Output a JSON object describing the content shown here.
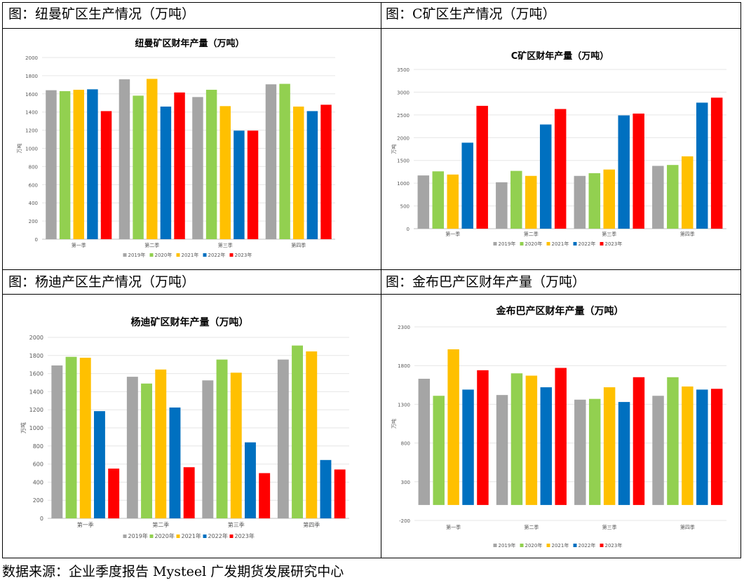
{
  "captions": [
    "图：纽曼矿区生产情况（万吨）",
    "图：C矿区生产情况（万吨）",
    "图：杨迪产区生产情况（万吨）",
    "图：金布巴产区财年产量（万吨）"
  ],
  "source": "数据来源：企业季度报告 Mysteel 广发期货发展研究中心",
  "colors": {
    "2019年": "#a5a5a5",
    "2020年": "#92d050",
    "2021年": "#ffc000",
    "2022年": "#0070c0",
    "2023年": "#ff0000"
  },
  "chart_data": [
    {
      "type": "bar",
      "title": "纽曼矿区财年产量（万吨）",
      "ylabel": "万吨",
      "categories": [
        "第一季",
        "第二季",
        "第三季",
        "第四季"
      ],
      "ylim": [
        0,
        2000
      ],
      "ticks": [
        0,
        200,
        400,
        600,
        800,
        1000,
        1200,
        1400,
        1600,
        1800,
        2000
      ],
      "series": [
        {
          "name": "2019年",
          "values": [
            1640,
            1760,
            1565,
            1705
          ]
        },
        {
          "name": "2020年",
          "values": [
            1630,
            1580,
            1645,
            1710
          ]
        },
        {
          "name": "2021年",
          "values": [
            1645,
            1765,
            1465,
            1460
          ]
        },
        {
          "name": "2022年",
          "values": [
            1650,
            1460,
            1195,
            1410
          ]
        },
        {
          "name": "2023年",
          "values": [
            1410,
            1615,
            1195,
            1480
          ]
        }
      ]
    },
    {
      "type": "bar",
      "title": "C矿区财年产量（万吨）",
      "ylabel": "万吨",
      "categories": [
        "第一季",
        "第二季",
        "第三季",
        "第四季"
      ],
      "ylim": [
        0,
        3500
      ],
      "ticks": [
        0,
        500,
        1000,
        1500,
        2000,
        2500,
        3000,
        3500
      ],
      "series": [
        {
          "name": "2019年",
          "values": [
            1170,
            1020,
            1160,
            1380
          ]
        },
        {
          "name": "2020年",
          "values": [
            1260,
            1270,
            1220,
            1400
          ]
        },
        {
          "name": "2021年",
          "values": [
            1190,
            1160,
            1300,
            1590
          ]
        },
        {
          "name": "2022年",
          "values": [
            1890,
            2290,
            2490,
            2770
          ]
        },
        {
          "name": "2023年",
          "values": [
            2700,
            2630,
            2530,
            2880
          ]
        }
      ]
    },
    {
      "type": "bar",
      "title": "杨迪矿区财年产量（万吨）",
      "ylabel": "万吨",
      "categories": [
        "第一季",
        "第二季",
        "第三季",
        "第四季"
      ],
      "ylim": [
        0,
        2000
      ],
      "ticks": [
        0,
        200,
        400,
        600,
        800,
        1000,
        1200,
        1400,
        1600,
        1800,
        2000
      ],
      "series": [
        {
          "name": "2019年",
          "values": [
            1690,
            1565,
            1525,
            1755
          ]
        },
        {
          "name": "2020年",
          "values": [
            1785,
            1490,
            1755,
            1910
          ]
        },
        {
          "name": "2021年",
          "values": [
            1775,
            1645,
            1610,
            1845
          ]
        },
        {
          "name": "2022年",
          "values": [
            1185,
            1225,
            840,
            645
          ]
        },
        {
          "name": "2023年",
          "values": [
            550,
            565,
            500,
            540
          ]
        }
      ]
    },
    {
      "type": "bar",
      "title": "金布巴产区财年产量（万吨）",
      "ylabel": "万吨",
      "categories": [
        "第一季",
        "第二季",
        "第三季",
        "第四季"
      ],
      "ylim": [
        -200,
        2300
      ],
      "ticks": [
        -200,
        300,
        800,
        1300,
        1800,
        2300
      ],
      "series": [
        {
          "name": "2019年",
          "values": [
            1630,
            1420,
            1360,
            1410
          ]
        },
        {
          "name": "2020年",
          "values": [
            1410,
            1700,
            1370,
            1650
          ]
        },
        {
          "name": "2021年",
          "values": [
            2010,
            1670,
            1520,
            1530
          ]
        },
        {
          "name": "2022年",
          "values": [
            1490,
            1520,
            1330,
            1490
          ]
        },
        {
          "name": "2023年",
          "values": [
            1740,
            1770,
            1650,
            1500
          ]
        }
      ]
    }
  ]
}
